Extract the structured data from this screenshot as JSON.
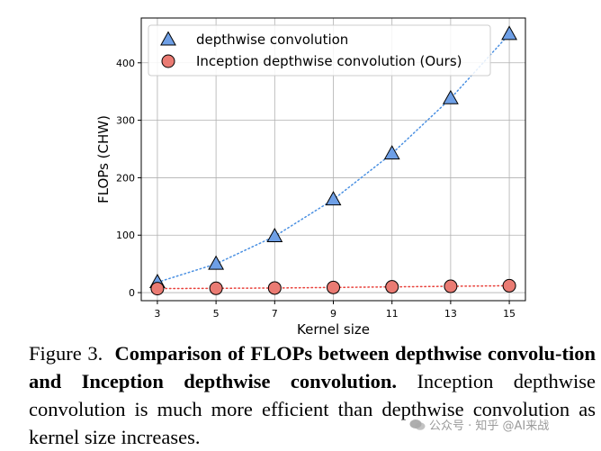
{
  "chart_data": {
    "type": "line",
    "xlabel": "Kernel size",
    "ylabel": "FLOPs (CHW)",
    "x": [
      3,
      5,
      7,
      9,
      11,
      13,
      15
    ],
    "xlim": [
      2.45,
      15.55
    ],
    "ylim": [
      -14,
      478
    ],
    "yticks": [
      0,
      100,
      200,
      300,
      400
    ],
    "grid": true,
    "legend_position": "top-left",
    "series": [
      {
        "name": "depthwise convolution",
        "marker": "triangle",
        "color": "#6e9fe6",
        "line_color": "#4a90e2",
        "values": [
          18,
          50,
          98,
          162,
          242,
          338,
          450
        ]
      },
      {
        "name": "Inception depthwise convolution (Ours)",
        "marker": "circle",
        "color": "#ea7b73",
        "line_color": "#e8403a",
        "values": [
          7,
          7.5,
          8,
          9,
          10,
          11,
          12
        ]
      }
    ]
  },
  "caption": {
    "label": "Figure 3.",
    "title": "Comparison of FLOPs between depthwise convolu-tion and Inception depthwise convolution.",
    "body": "Inception depthwise convolution is much more efficient than depthwise convolution as kernel size increases."
  },
  "watermark": {
    "text": "公众号 · 知乎 @AI来战"
  }
}
